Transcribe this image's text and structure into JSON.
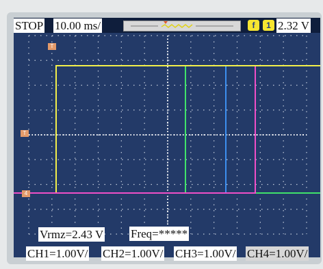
{
  "status": {
    "run_state": "STOP",
    "timebase": "10.00 ms/"
  },
  "trigger": {
    "slope_icon": "rising-edge-icon",
    "channel_icon": "channel-1-icon",
    "channel_glyph": "1",
    "slope_glyph": "f",
    "level": "2.32 V"
  },
  "measurements": {
    "vrms": "Vrmz=2.43 V",
    "freq": "Freq=*****"
  },
  "channels": [
    {
      "label": "CH1=1.00V/",
      "color": "#f3f04a"
    },
    {
      "label": "CH2=1.00V/",
      "color": "#40e36a"
    },
    {
      "label": "CH3=1.00V/",
      "color": "#3d8ff0"
    },
    {
      "label": "CH4=1.00V/",
      "color": "#f04fc7"
    }
  ],
  "markers": {
    "trigger_pos": "T",
    "trigger_level": "T",
    "channel_ref": "4"
  }
}
